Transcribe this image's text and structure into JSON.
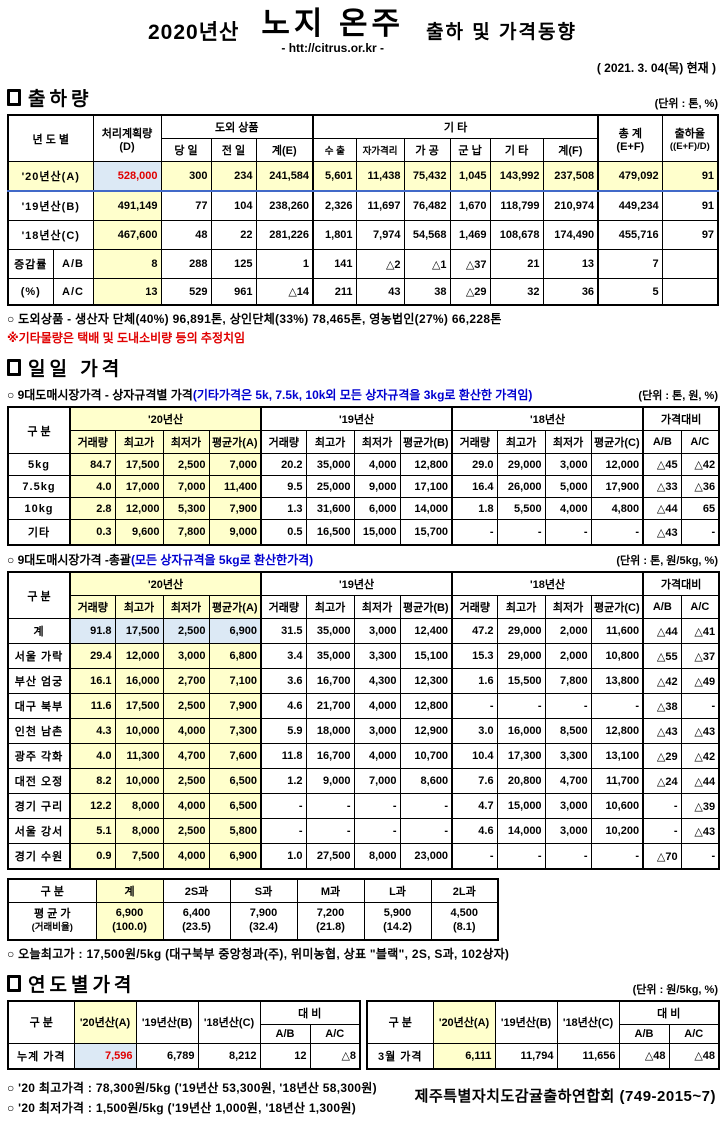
{
  "header": {
    "year_label": "2020년산",
    "title": "노지 온주",
    "title_suffix": "출하 및 가격동향",
    "url": "- htt://citrus.or.kr -",
    "as_of": "( 2021. 3. 04(목) 현재 )"
  },
  "colors": {
    "highlight_yellow": "#FFFFCC",
    "highlight_blue": "#DCE9F5",
    "accent_red": "#E00000",
    "accent_blue": "#0000D0",
    "row_a_border_blue": "#4169C8"
  },
  "shipment": {
    "section_title": "출하량",
    "unit": "(단위 : 톤, %)",
    "head": {
      "year_col": "년 도 별",
      "plan_line1": "처리계획량",
      "plan_line2": "(D)",
      "group_dooe": "도외 상품",
      "group_etc": "기     타",
      "total_line1": "총  계",
      "total_line2": "(E+F)",
      "rate_line1": "출하율",
      "rate_line2": "((E+F)/D)",
      "sub": [
        "당 일",
        "전 일",
        "계(E)",
        "수 출",
        "자가격리",
        "가 공",
        "군 납",
        "기 타",
        "계(F)"
      ]
    },
    "rows": [
      {
        "label": "'20년산(A)",
        "cells": [
          "528,000",
          "300",
          "234",
          "241,584",
          "5,601",
          "11,438",
          "75,432",
          "1,045",
          "143,992",
          "237,508",
          "479,092",
          "91"
        ]
      },
      {
        "label": "'19년산(B)",
        "cells": [
          "491,149",
          "77",
          "104",
          "238,260",
          "2,326",
          "11,697",
          "76,482",
          "1,670",
          "118,799",
          "210,974",
          "449,234",
          "91"
        ]
      },
      {
        "label": "'18년산(C)",
        "cells": [
          "467,600",
          "48",
          "22",
          "281,226",
          "1,801",
          "7,974",
          "54,568",
          "1,469",
          "108,678",
          "174,490",
          "455,716",
          "97"
        ]
      }
    ],
    "change_rows": [
      {
        "group": "증감률",
        "label": "A/B",
        "cells": [
          "8",
          "288",
          "125",
          "1",
          "141",
          "△2",
          "△1",
          "△37",
          "21",
          "13",
          "7",
          ""
        ]
      },
      {
        "group": "(%)",
        "label": "A/C",
        "cells": [
          "13",
          "529",
          "961",
          "△14",
          "211",
          "43",
          "38",
          "△29",
          "32",
          "36",
          "5",
          ""
        ]
      }
    ],
    "note": "○ 도외상품 - 생산자 단체(40%)  96,891톤,   상인단체(33%)  78,465톤,   영농법인(27%)  66,228톤",
    "warning": "※기타물량은 택배 및 도내소비량 등의 추정치임"
  },
  "daily": {
    "section_title": "일일 가격",
    "label_col": "구  분",
    "groups": [
      "'20년산",
      "'19년산",
      "'18년산",
      "가격대비"
    ],
    "sub": [
      "거래량",
      "최고가",
      "최저가",
      "평균가(A)",
      "거래량",
      "최고가",
      "최저가",
      "평균가(B)",
      "거래량",
      "최고가",
      "최저가",
      "평균가(C)",
      "A/B",
      "A/C"
    ],
    "box": {
      "subtitle": "○ 9대도매시장가격 - 상자규격별 가격",
      "subtitle_note": "(기타가격은 5k, 7.5k, 10k외 모든 상자규격을 3kg로 환산한 가격임)",
      "unit": "(단위 : 톤, 원, %)",
      "rows": [
        {
          "label": "5kg",
          "cells": [
            "84.7",
            "17,500",
            "2,500",
            "7,000",
            "20.2",
            "35,000",
            "4,000",
            "12,800",
            "29.0",
            "29,000",
            "3,000",
            "12,000",
            "△45",
            "△42"
          ]
        },
        {
          "label": "7.5kg",
          "cells": [
            "4.0",
            "17,000",
            "7,000",
            "11,400",
            "9.5",
            "25,000",
            "9,000",
            "17,100",
            "16.4",
            "26,000",
            "5,000",
            "17,900",
            "△33",
            "△36"
          ]
        },
        {
          "label": "10kg",
          "cells": [
            "2.8",
            "12,000",
            "5,300",
            "7,900",
            "1.3",
            "31,600",
            "6,000",
            "14,000",
            "1.8",
            "5,500",
            "4,000",
            "4,800",
            "△44",
            "65"
          ]
        },
        {
          "label": "기타",
          "cells": [
            "0.3",
            "9,600",
            "7,800",
            "9,000",
            "0.5",
            "16,500",
            "15,000",
            "15,700",
            "-",
            "-",
            "-",
            "-",
            "△43",
            "-"
          ]
        }
      ]
    },
    "market": {
      "subtitle": "○ 9대도매시장가격 -총괄",
      "subtitle_note": "(모든 상자규격을 5kg로 환산한가격)",
      "unit": "(단위 : 톤, 원/5kg, %)",
      "rows": [
        {
          "label": "계",
          "cells": [
            "91.8",
            "17,500",
            "2,500",
            "6,900",
            "31.5",
            "35,000",
            "3,000",
            "12,400",
            "47.2",
            "29,000",
            "2,000",
            "11,600",
            "△44",
            "△41"
          ]
        },
        {
          "label": "서울 가락",
          "cells": [
            "29.4",
            "12,000",
            "3,000",
            "6,800",
            "3.4",
            "35,000",
            "3,300",
            "15,100",
            "15.3",
            "29,000",
            "2,000",
            "10,800",
            "△55",
            "△37"
          ]
        },
        {
          "label": "부산 엄궁",
          "cells": [
            "16.1",
            "16,000",
            "2,700",
            "7,100",
            "3.6",
            "16,700",
            "4,300",
            "12,300",
            "1.6",
            "15,500",
            "7,800",
            "13,800",
            "△42",
            "△49"
          ]
        },
        {
          "label": "대구 북부",
          "cells": [
            "11.6",
            "17,500",
            "2,500",
            "7,900",
            "4.6",
            "21,700",
            "4,000",
            "12,800",
            "-",
            "-",
            "-",
            "-",
            "△38",
            "-"
          ]
        },
        {
          "label": "인천 남촌",
          "cells": [
            "4.3",
            "10,000",
            "4,000",
            "7,300",
            "5.9",
            "18,000",
            "3,000",
            "12,900",
            "3.0",
            "16,000",
            "8,500",
            "12,800",
            "△43",
            "△43"
          ]
        },
        {
          "label": "광주 각화",
          "cells": [
            "4.0",
            "11,300",
            "4,700",
            "7,600",
            "11.8",
            "16,700",
            "4,000",
            "10,700",
            "10.4",
            "17,300",
            "3,300",
            "13,100",
            "△29",
            "△42"
          ]
        },
        {
          "label": "대전 오정",
          "cells": [
            "8.2",
            "10,000",
            "2,500",
            "6,500",
            "1.2",
            "9,000",
            "7,000",
            "8,600",
            "7.6",
            "20,800",
            "4,700",
            "11,700",
            "△24",
            "△44"
          ]
        },
        {
          "label": "경기 구리",
          "cells": [
            "12.2",
            "8,000",
            "4,000",
            "6,500",
            "-",
            "-",
            "-",
            "-",
            "4.7",
            "15,000",
            "3,000",
            "10,600",
            "-",
            "△39"
          ]
        },
        {
          "label": "서울 강서",
          "cells": [
            "5.1",
            "8,000",
            "2,500",
            "5,800",
            "-",
            "-",
            "-",
            "-",
            "4.6",
            "14,000",
            "3,000",
            "10,200",
            "-",
            "△43"
          ]
        },
        {
          "label": "경기 수원",
          "cells": [
            "0.9",
            "7,500",
            "4,000",
            "6,900",
            "1.0",
            "27,500",
            "8,000",
            "23,000",
            "-",
            "-",
            "-",
            "-",
            "△70",
            "-"
          ]
        }
      ]
    },
    "size": {
      "label_col": "구   분",
      "headers": [
        "계",
        "2S과",
        "S과",
        "M과",
        "L과",
        "2L과"
      ],
      "row_label_line1": "평 균 가",
      "row_label_line2": "(거래비율)",
      "values": [
        "6,900",
        "6,400",
        "7,900",
        "7,200",
        "5,900",
        "4,500"
      ],
      "ratios": [
        "(100.0)",
        "(23.5)",
        "(32.4)",
        "(21.8)",
        "(14.2)",
        "(8.1)"
      ]
    },
    "today_high": "○ 오늘최고가 :  17,500원/5kg (대구북부  중앙청과(주),   위미농협,   상표 \"블랙\",   2S, S과, 102상자)"
  },
  "yearly": {
    "section_title": "연도별가격",
    "unit": "(단위 : 원/5kg, %)",
    "head": {
      "label_col": "구      분",
      "y20": "'20년산(A)",
      "y19": "'19년산(B)",
      "y18": "'18년산(C)",
      "vs": "대      비",
      "ab": "A/B",
      "ac": "A/C"
    },
    "left": {
      "label": "누계 가격",
      "cells": [
        "7,596",
        "6,789",
        "8,212",
        "12",
        "△8"
      ]
    },
    "right": {
      "label": "3월 가격",
      "cells": [
        "6,111",
        "11,794",
        "11,656",
        "△48",
        "△48"
      ]
    },
    "note_high": "○ '20 최고가격 : 78,300원/5kg ('19년산 53,300원, '18년산 58,300원)",
    "note_low": "○ '20 최저가격 :  1,500원/5kg ('19년산  1,000원, '18년산  1,300원)",
    "org": "제주특별자치도감귤출하연합회 (749-2015~7)"
  }
}
